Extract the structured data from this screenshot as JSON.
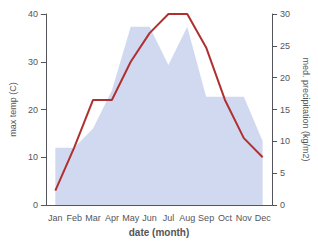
{
  "chart_data": {
    "type": "line",
    "xlabel": "date (month)",
    "ylabel": "max temp (C)",
    "y2label": "med. precipitation (kg/m2)",
    "categories": [
      "Jan",
      "Feb",
      "Mar",
      "Apr",
      "May",
      "Jun",
      "Jul",
      "Aug",
      "Sep",
      "Oct",
      "Nov",
      "Dec"
    ],
    "series": [
      {
        "type": "line",
        "color": "#b03030",
        "values": [
          3,
          12,
          22,
          22,
          30,
          36,
          40,
          40,
          33,
          22,
          14,
          10
        ]
      },
      {
        "type": "area",
        "color": "#99aadd",
        "axis": "y2",
        "values": [
          9,
          9,
          12,
          18,
          28,
          28,
          22,
          28,
          17,
          17,
          17,
          10
        ]
      }
    ],
    "ylim": [
      0,
      40
    ],
    "yticks": [
      0,
      10,
      20,
      30,
      40
    ],
    "y2lim": [
      0,
      30
    ],
    "y2ticks": [
      0,
      5,
      10,
      15,
      20,
      25,
      30
    ],
    "grid": false
  }
}
